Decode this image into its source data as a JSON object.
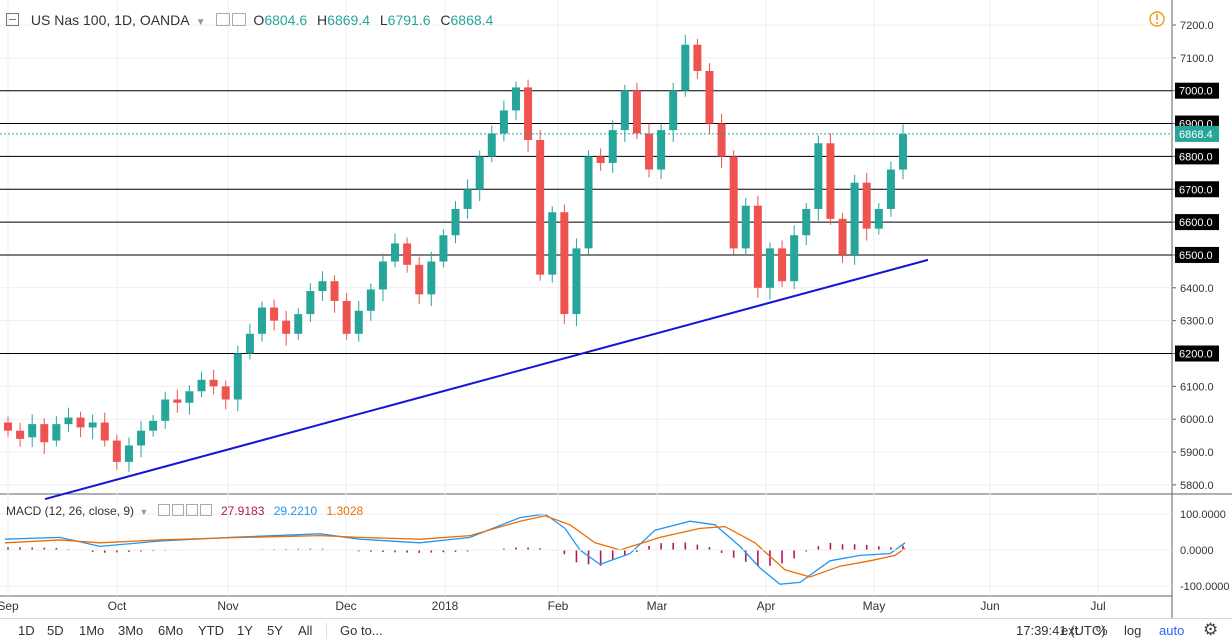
{
  "symbol": {
    "title": "US Nas 100, 1D, OANDA",
    "ohlc": [
      {
        "label": "O",
        "value": "6804.6"
      },
      {
        "label": "H",
        "value": "6869.4"
      },
      {
        "label": "L",
        "value": "6791.6"
      },
      {
        "label": "C",
        "value": "6868.4"
      }
    ]
  },
  "price_axis": {
    "ticks": [
      "7200.0",
      "7100.0",
      "7000.0",
      "6900.0",
      "6800.0",
      "6700.0",
      "6600.0",
      "6500.0",
      "6400.0",
      "6300.0",
      "6200.0",
      "6100.0",
      "6000.0",
      "5900.0",
      "5800.0"
    ],
    "highlighted": [
      "7000.0",
      "6900.0",
      "6800.0",
      "6700.0",
      "6600.0",
      "6500.0",
      "6200.0"
    ],
    "last_price_label": "6868.4"
  },
  "macd": {
    "title": "MACD (12, 26, close, 9)",
    "values": [
      {
        "value": "27.9183",
        "color": "#b2185c"
      },
      {
        "value": "29.2210",
        "color": "#2196f3"
      },
      {
        "value": "1.3028",
        "color": "#ef6c00"
      }
    ],
    "axis_ticks": [
      "100.0000",
      "0.0000",
      "-100.0000"
    ]
  },
  "time_axis": {
    "labels": [
      "Sep",
      "Oct",
      "Nov",
      "Dec",
      "2018",
      "Feb",
      "Mar",
      "Apr",
      "May",
      "Jun",
      "Jul"
    ]
  },
  "bottom_bar": {
    "ranges": [
      "1D",
      "5D",
      "1Mo",
      "3Mo",
      "6Mo",
      "YTD",
      "1Y",
      "5Y",
      "All"
    ],
    "goto_label": "Go to...",
    "clock": "17:39:41 (UTC)",
    "ext_label": "ext",
    "percent_label": "%",
    "log_label": "log",
    "auto_label": "auto"
  },
  "icons": {
    "alert": "alert-icon",
    "settings": "gear-icon",
    "collapse": "collapse-icon"
  },
  "colors": {
    "up": "#26a69a",
    "down": "#ef5350",
    "trendline": "#1515d6",
    "macd_line": "#2196f3",
    "signal_line": "#ef6c00",
    "histogram": "#b2185c"
  },
  "chart_data": {
    "type": "candlestick",
    "title": "US Nas 100, 1D, OANDA",
    "y_range": [
      5750,
      7250
    ],
    "x_labels": [
      "Sep",
      "Oct",
      "Nov",
      "Dec",
      "2018",
      "Feb",
      "Mar",
      "Apr",
      "May",
      "Jun",
      "Jul"
    ],
    "last_close": 6868.4,
    "horizontal_levels": [
      7000,
      6900,
      6800,
      6700,
      6600,
      6500,
      6200
    ],
    "trendline": {
      "start": {
        "x": "Sep",
        "y": 5760
      },
      "end": {
        "x": "mid-May",
        "y": 6485
      }
    },
    "candles_approx": [
      {
        "o": 5990,
        "c": 5965
      },
      {
        "o": 5965,
        "c": 5940
      },
      {
        "o": 5945,
        "c": 5985
      },
      {
        "o": 5985,
        "c": 5930
      },
      {
        "o": 5935,
        "c": 5985
      },
      {
        "o": 5985,
        "c": 6005
      },
      {
        "o": 6005,
        "c": 5975
      },
      {
        "o": 5975,
        "c": 5990
      },
      {
        "o": 5990,
        "c": 5935
      },
      {
        "o": 5935,
        "c": 5870
      },
      {
        "o": 5870,
        "c": 5920
      },
      {
        "o": 5920,
        "c": 5965
      },
      {
        "o": 5965,
        "c": 5995
      },
      {
        "o": 5995,
        "c": 6060
      },
      {
        "o": 6060,
        "c": 6050
      },
      {
        "o": 6050,
        "c": 6085
      },
      {
        "o": 6085,
        "c": 6120
      },
      {
        "o": 6120,
        "c": 6100
      },
      {
        "o": 6100,
        "c": 6060
      },
      {
        "o": 6060,
        "c": 6200
      },
      {
        "o": 6200,
        "c": 6260
      },
      {
        "o": 6260,
        "c": 6340
      },
      {
        "o": 6340,
        "c": 6300
      },
      {
        "o": 6300,
        "c": 6260
      },
      {
        "o": 6260,
        "c": 6320
      },
      {
        "o": 6320,
        "c": 6390
      },
      {
        "o": 6390,
        "c": 6420
      },
      {
        "o": 6420,
        "c": 6360
      },
      {
        "o": 6360,
        "c": 6260
      },
      {
        "o": 6260,
        "c": 6330
      },
      {
        "o": 6330,
        "c": 6395
      },
      {
        "o": 6395,
        "c": 6480
      },
      {
        "o": 6480,
        "c": 6535
      },
      {
        "o": 6535,
        "c": 6470
      },
      {
        "o": 6470,
        "c": 6380
      },
      {
        "o": 6380,
        "c": 6480
      },
      {
        "o": 6480,
        "c": 6560
      },
      {
        "o": 6560,
        "c": 6640
      },
      {
        "o": 6640,
        "c": 6700
      },
      {
        "o": 6700,
        "c": 6800
      },
      {
        "o": 6800,
        "c": 6870
      },
      {
        "o": 6870,
        "c": 6940
      },
      {
        "o": 6940,
        "c": 7010
      },
      {
        "o": 7010,
        "c": 6850
      },
      {
        "o": 6850,
        "c": 6440
      },
      {
        "o": 6440,
        "c": 6630
      },
      {
        "o": 6630,
        "c": 6320
      },
      {
        "o": 6320,
        "c": 6520
      },
      {
        "o": 6520,
        "c": 6800
      },
      {
        "o": 6800,
        "c": 6780
      },
      {
        "o": 6780,
        "c": 6880
      },
      {
        "o": 6880,
        "c": 7000
      },
      {
        "o": 7000,
        "c": 6870
      },
      {
        "o": 6870,
        "c": 6760
      },
      {
        "o": 6760,
        "c": 6880
      },
      {
        "o": 6880,
        "c": 7000
      },
      {
        "o": 7000,
        "c": 7140
      },
      {
        "o": 7140,
        "c": 7060
      },
      {
        "o": 7060,
        "c": 6900
      },
      {
        "o": 6900,
        "c": 6800
      },
      {
        "o": 6800,
        "c": 6520
      },
      {
        "o": 6520,
        "c": 6650
      },
      {
        "o": 6650,
        "c": 6400
      },
      {
        "o": 6400,
        "c": 6520
      },
      {
        "o": 6520,
        "c": 6420
      },
      {
        "o": 6420,
        "c": 6560
      },
      {
        "o": 6560,
        "c": 6640
      },
      {
        "o": 6640,
        "c": 6840
      },
      {
        "o": 6840,
        "c": 6610
      },
      {
        "o": 6610,
        "c": 6500
      },
      {
        "o": 6500,
        "c": 6720
      },
      {
        "o": 6720,
        "c": 6580
      },
      {
        "o": 6580,
        "c": 6640
      },
      {
        "o": 6640,
        "c": 6760
      },
      {
        "o": 6760,
        "c": 6868
      }
    ]
  }
}
